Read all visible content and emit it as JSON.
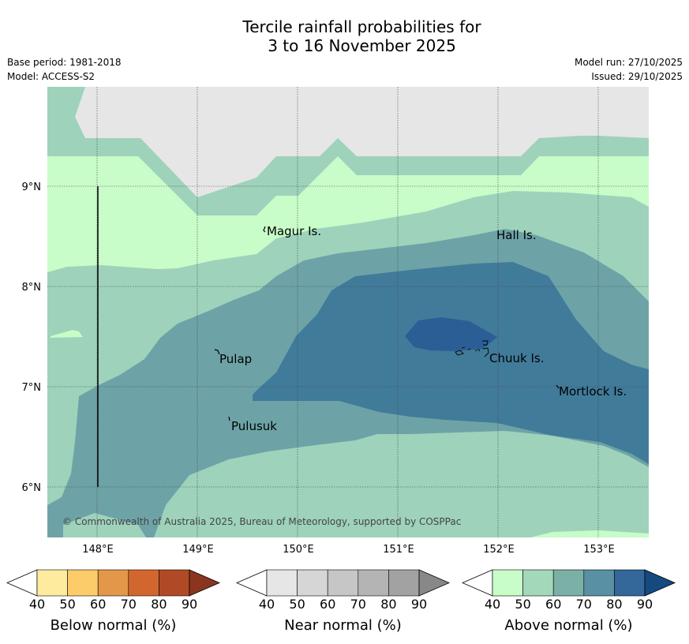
{
  "title_line1": "Tercile rainfall probabilities for",
  "title_line2": "3 to 16 November 2025",
  "base_period": "Base period: 1981-2018",
  "model": "Model: ACCESS-S2",
  "model_run": "Model run: 27/10/2025",
  "issued": "Issued: 29/10/2025",
  "copyright": "© Commonwealth of Australia 2025, Bureau of Meteorology, supported by COSPPac",
  "axes": {
    "x_ticks": [
      "148°E",
      "149°E",
      "150°E",
      "151°E",
      "152°E",
      "153°E"
    ],
    "y_ticks": [
      "9°N",
      "8°N",
      "7°N",
      "6°N"
    ]
  },
  "places": [
    "Magur Is.",
    "Hall Is.",
    "Pulap",
    "Chuuk Is.",
    "Mortlock Is.",
    "Pulusuk"
  ],
  "legend": [
    {
      "title": "Below normal (%)",
      "ticks": [
        "40",
        "50",
        "60",
        "70",
        "80",
        "90"
      ],
      "colors": [
        "#ffeb9e",
        "#fdcc6a",
        "#e39749",
        "#d2662f",
        "#b04a26",
        "#8b3520"
      ]
    },
    {
      "title": "Near normal (%)",
      "ticks": [
        "40",
        "50",
        "60",
        "70",
        "80",
        "90"
      ],
      "colors": [
        "#e6e6e6",
        "#d6d6d6",
        "#c6c6c6",
        "#b4b4b4",
        "#a2a2a2",
        "#888888"
      ]
    },
    {
      "title": "Above normal (%)",
      "ticks": [
        "40",
        "50",
        "60",
        "70",
        "80",
        "90"
      ],
      "colors": [
        "#c8fcc8",
        "#a4d8bb",
        "#7bb0a6",
        "#5990a3",
        "#34679a",
        "#144a80"
      ]
    }
  ],
  "colors": {
    "near_normal": "#e6e6e6",
    "above_40": "#c8fcc8",
    "above_50": "#9ed2bb",
    "above_60": "#6da3a7",
    "above_70": "#417b9a",
    "above_80": "#2c5e96"
  }
}
